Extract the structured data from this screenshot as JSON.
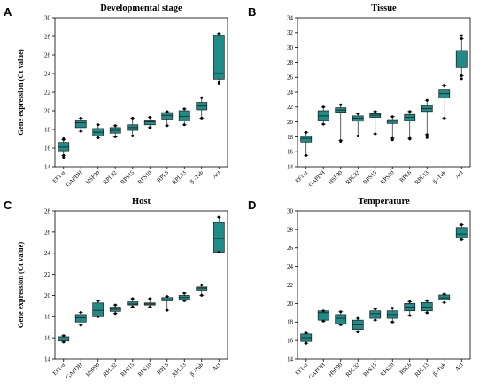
{
  "colors": {
    "box_fill": "#1f8c88",
    "box_stroke": "#1a1a1a",
    "axis": "#000000",
    "point": "#000000"
  },
  "chart_data": [
    {
      "panel": "A",
      "type": "box",
      "title": "Developmental stage",
      "ylabel": "Gene expression (Ct value)",
      "ylim": [
        14,
        30
      ],
      "yticks": [
        14,
        16,
        18,
        20,
        22,
        24,
        26,
        28,
        30
      ],
      "categories": [
        "EF1-α",
        "GAPDH",
        "HSP90",
        "RPL32",
        "RPS15",
        "RPS10",
        "RPL6",
        "RPL13",
        "β -Tub",
        "Act"
      ],
      "boxes": [
        {
          "min": 15.2,
          "q1": 15.7,
          "median": 16.1,
          "q3": 16.6,
          "max": 16.9,
          "outliers": [
            15.0,
            17.0
          ]
        },
        {
          "min": 17.8,
          "q1": 18.2,
          "median": 18.7,
          "q3": 19.0,
          "max": 19.2,
          "outliers": []
        },
        {
          "min": 17.1,
          "q1": 17.3,
          "median": 17.7,
          "q3": 18.1,
          "max": 18.5,
          "outliers": []
        },
        {
          "min": 17.2,
          "q1": 17.6,
          "median": 17.9,
          "q3": 18.2,
          "max": 18.4,
          "outliers": []
        },
        {
          "min": 17.3,
          "q1": 17.9,
          "median": 18.2,
          "q3": 18.5,
          "max": 19.2,
          "outliers": []
        },
        {
          "min": 18.2,
          "q1": 18.5,
          "median": 18.8,
          "q3": 19.0,
          "max": 19.3,
          "outliers": []
        },
        {
          "min": 18.4,
          "q1": 19.1,
          "median": 19.5,
          "q3": 19.8,
          "max": 19.9,
          "outliers": []
        },
        {
          "min": 18.5,
          "q1": 18.9,
          "median": 19.4,
          "q3": 20.0,
          "max": 20.2,
          "outliers": []
        },
        {
          "min": 19.2,
          "q1": 20.1,
          "median": 20.5,
          "q3": 20.9,
          "max": 21.4,
          "outliers": []
        },
        {
          "min": 23.1,
          "q1": 23.4,
          "median": 24.0,
          "q3": 28.1,
          "max": 28.3,
          "outliers": [
            22.9
          ]
        }
      ]
    },
    {
      "panel": "B",
      "type": "box",
      "title": "Tissue",
      "ylabel": "",
      "ylim": [
        14,
        34
      ],
      "yticks": [
        14,
        16,
        18,
        20,
        22,
        24,
        26,
        28,
        30,
        32,
        34
      ],
      "categories": [
        "EF1-α",
        "GAPDH",
        "HSP90",
        "RPL32",
        "RPS15",
        "RPS10",
        "RPL6",
        "RPL13",
        "β -Tub",
        "Act"
      ],
      "boxes": [
        {
          "min": 15.5,
          "q1": 17.3,
          "median": 17.8,
          "q3": 18.1,
          "max": 18.6,
          "outliers": []
        },
        {
          "min": 19.7,
          "q1": 20.2,
          "median": 20.8,
          "q3": 21.5,
          "max": 22.0,
          "outliers": []
        },
        {
          "min": 17.5,
          "q1": 21.3,
          "median": 21.6,
          "q3": 21.9,
          "max": 22.3,
          "outliers": [
            17.4
          ]
        },
        {
          "min": 18.1,
          "q1": 20.1,
          "median": 20.5,
          "q3": 20.8,
          "max": 21.1,
          "outliers": []
        },
        {
          "min": 18.4,
          "q1": 20.6,
          "median": 20.9,
          "q3": 21.1,
          "max": 21.4,
          "outliers": []
        },
        {
          "min": 17.8,
          "q1": 19.8,
          "median": 20.1,
          "q3": 20.3,
          "max": 20.7,
          "outliers": [
            17.6
          ]
        },
        {
          "min": 17.8,
          "q1": 20.2,
          "median": 20.6,
          "q3": 21.0,
          "max": 21.4,
          "outliers": [
            17.7
          ]
        },
        {
          "min": 18.3,
          "q1": 21.4,
          "median": 21.8,
          "q3": 22.2,
          "max": 22.9,
          "outliers": [
            17.9
          ]
        },
        {
          "min": 20.5,
          "q1": 23.2,
          "median": 23.8,
          "q3": 24.4,
          "max": 24.9,
          "outliers": []
        },
        {
          "min": 26.2,
          "q1": 27.3,
          "median": 28.6,
          "q3": 29.6,
          "max": 31.2,
          "outliers": [
            25.8,
            31.6
          ]
        }
      ]
    },
    {
      "panel": "C",
      "type": "box",
      "title": "Host",
      "ylabel": "Gene expression (Ct value)",
      "ylim": [
        14,
        28
      ],
      "yticks": [
        14,
        16,
        18,
        20,
        22,
        24,
        26,
        28
      ],
      "categories": [
        "EF1-α",
        "GAPDH",
        "HSP90",
        "RPL32",
        "RPS15",
        "RPS10",
        "RPL6",
        "RPL13",
        "β -Tub",
        "Act"
      ],
      "boxes": [
        {
          "min": 15.6,
          "q1": 15.7,
          "median": 15.9,
          "q3": 16.1,
          "max": 16.2,
          "outliers": []
        },
        {
          "min": 17.2,
          "q1": 17.5,
          "median": 17.9,
          "q3": 18.2,
          "max": 18.4,
          "outliers": []
        },
        {
          "min": 18.0,
          "q1": 18.0,
          "median": 18.6,
          "q3": 19.3,
          "max": 19.5,
          "outliers": []
        },
        {
          "min": 18.3,
          "q1": 18.5,
          "median": 18.7,
          "q3": 18.9,
          "max": 19.1,
          "outliers": []
        },
        {
          "min": 18.9,
          "q1": 19.1,
          "median": 19.2,
          "q3": 19.4,
          "max": 19.7,
          "outliers": []
        },
        {
          "min": 18.9,
          "q1": 19.1,
          "median": 19.2,
          "q3": 19.3,
          "max": 19.7,
          "outliers": []
        },
        {
          "min": 18.6,
          "q1": 19.5,
          "median": 19.6,
          "q3": 19.8,
          "max": 19.9,
          "outliers": []
        },
        {
          "min": 19.5,
          "q1": 19.6,
          "median": 19.8,
          "q3": 20.0,
          "max": 20.2,
          "outliers": []
        },
        {
          "min": 20.0,
          "q1": 20.5,
          "median": 20.7,
          "q3": 20.8,
          "max": 21.0,
          "outliers": []
        },
        {
          "min": 24.1,
          "q1": 24.1,
          "median": 25.4,
          "q3": 26.9,
          "max": 27.4,
          "outliers": []
        }
      ]
    },
    {
      "panel": "D",
      "type": "box",
      "title": "Temperature",
      "ylabel": "",
      "ylim": [
        14,
        30
      ],
      "yticks": [
        14,
        16,
        18,
        20,
        22,
        24,
        26,
        28,
        30
      ],
      "categories": [
        "EF1-α",
        "GAPDH",
        "HSP90",
        "RPL32",
        "RPS15",
        "RPS10",
        "RPL6",
        "RPL13",
        "β -Tub",
        "Act"
      ],
      "boxes": [
        {
          "min": 15.7,
          "q1": 15.9,
          "median": 16.3,
          "q3": 16.7,
          "max": 16.8,
          "outliers": []
        },
        {
          "min": 18.1,
          "q1": 18.2,
          "median": 19.0,
          "q3": 19.2,
          "max": 19.2,
          "outliers": []
        },
        {
          "min": 17.7,
          "q1": 17.8,
          "median": 18.4,
          "q3": 18.8,
          "max": 19.1,
          "outliers": []
        },
        {
          "min": 16.9,
          "q1": 17.2,
          "median": 17.7,
          "q3": 18.2,
          "max": 18.4,
          "outliers": []
        },
        {
          "min": 18.2,
          "q1": 18.4,
          "median": 18.9,
          "q3": 19.2,
          "max": 19.4,
          "outliers": []
        },
        {
          "min": 18.0,
          "q1": 18.4,
          "median": 18.8,
          "q3": 19.2,
          "max": 19.5,
          "outliers": []
        },
        {
          "min": 18.7,
          "q1": 19.2,
          "median": 19.6,
          "q3": 20.0,
          "max": 20.2,
          "outliers": []
        },
        {
          "min": 19.0,
          "q1": 19.2,
          "median": 19.6,
          "q3": 20.1,
          "max": 20.3,
          "outliers": []
        },
        {
          "min": 20.1,
          "q1": 20.4,
          "median": 20.6,
          "q3": 20.9,
          "max": 21.0,
          "outliers": []
        },
        {
          "min": 26.9,
          "q1": 27.1,
          "median": 27.5,
          "q3": 28.2,
          "max": 28.5,
          "outliers": []
        }
      ]
    }
  ]
}
